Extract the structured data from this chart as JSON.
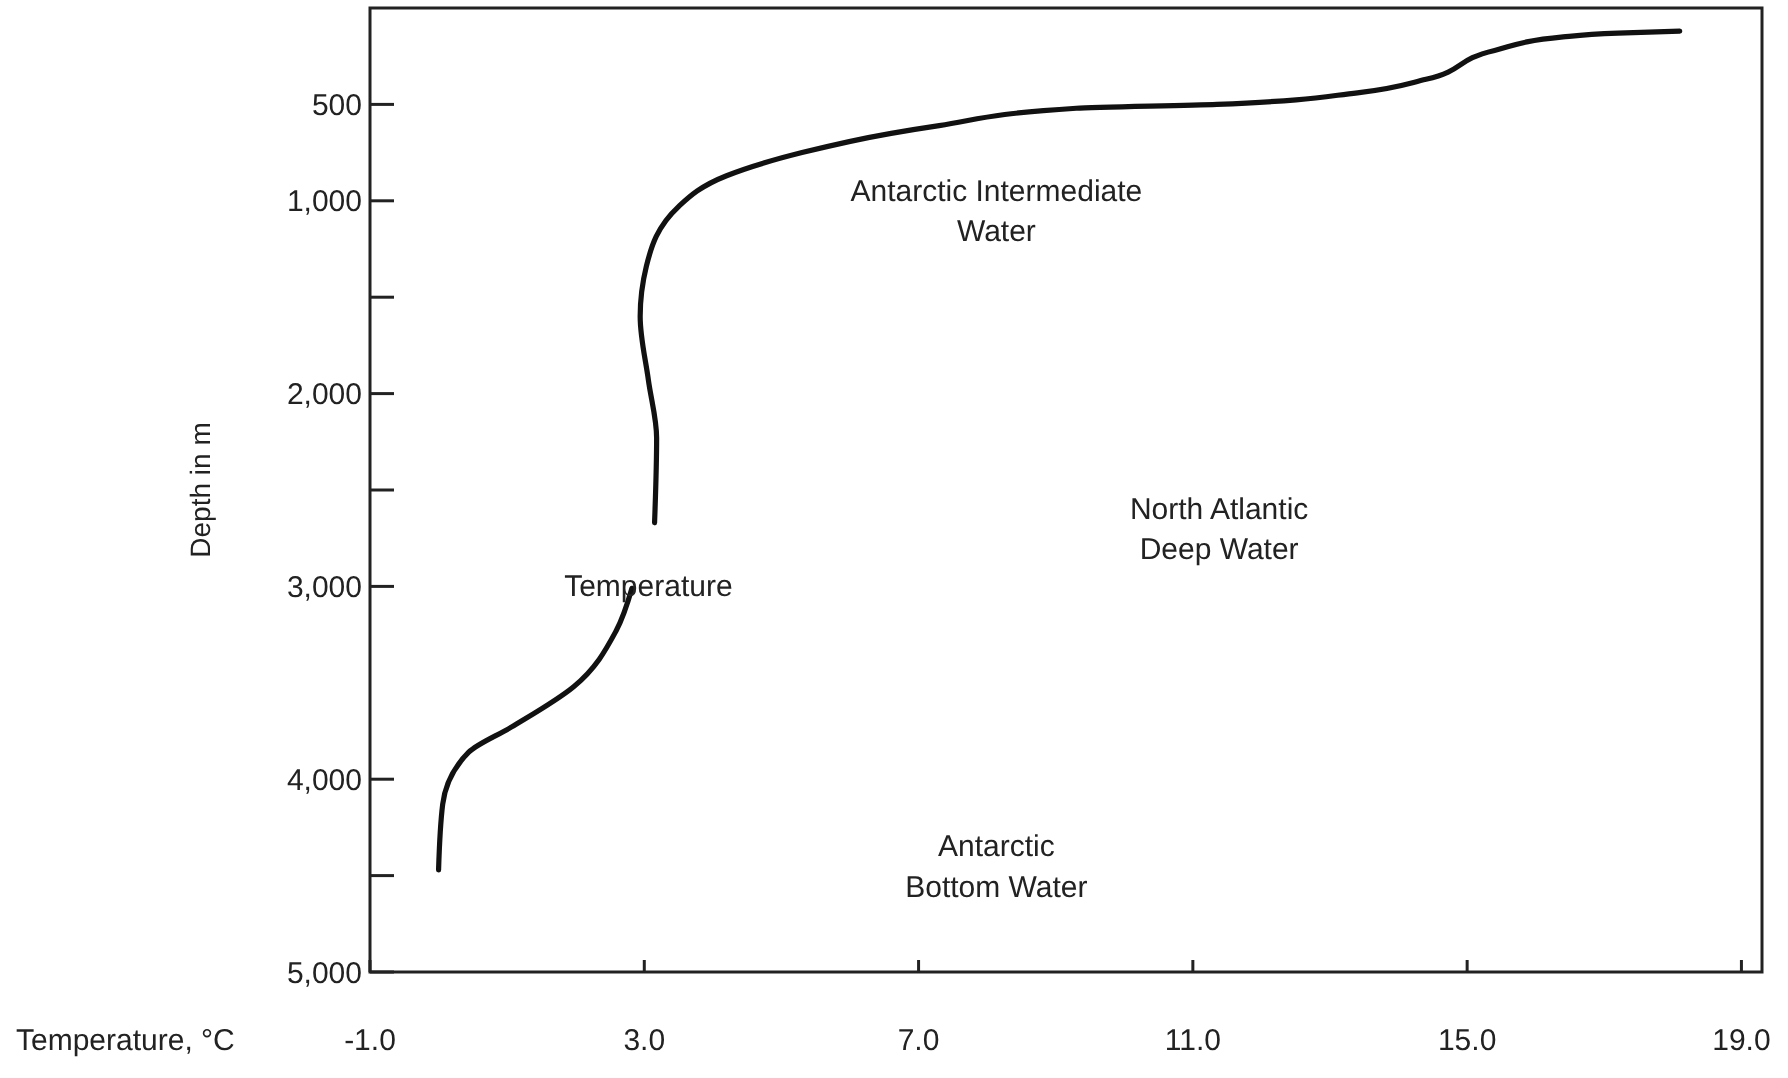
{
  "chart_data": {
    "type": "line",
    "xlabel": "Temperature, °C",
    "ylabel": "Depth in m",
    "xlim": [
      -1,
      19.3
    ],
    "ylim": [
      5000,
      0
    ],
    "xticks": [
      {
        "value": -1,
        "label": "-1.0"
      },
      {
        "value": 3,
        "label": "3.0"
      },
      {
        "value": 7,
        "label": "7.0"
      },
      {
        "value": 11,
        "label": "11.0"
      },
      {
        "value": 15,
        "label": "15.0"
      },
      {
        "value": 19,
        "label": "19.0"
      }
    ],
    "yticks": [
      500,
      {
        "value": 1000,
        "label": "1,000"
      },
      {
        "value": 1500,
        "label": null
      },
      {
        "value": 2000,
        "label": "2,000"
      },
      {
        "value": 2500,
        "label": null
      },
      {
        "value": 3000,
        "label": "3,000"
      },
      {
        "value": 4000,
        "label": "4,000"
      },
      {
        "value": 4500,
        "label": null
      },
      {
        "value": 5000,
        "label": "5,000"
      }
    ],
    "series": [
      {
        "color": "#111111",
        "x": [
          0.0,
          0.06,
          0.44,
          1.06,
          1.97,
          2.59,
          2.82,
          3.0,
          3.15,
          3.18,
          3.06,
          2.94,
          3.03,
          3.5,
          4.2,
          5.3,
          6.6,
          7.3,
          9.3,
          11.35,
          13.4,
          14.4,
          15.4,
          16.4,
          17.2,
          18.1
        ],
        "values": [
          4470,
          4130,
          3860,
          3730,
          3520,
          3230,
          3010,
          null,
          2670,
          2230,
          1930,
          1600,
          1340,
          1030,
          870,
          750,
          650,
          610,
          520,
          500,
          440,
          370,
          220,
          150,
          130,
          120
        ]
      }
    ],
    "annotations": [
      "Antarctic Intermediate\nWater",
      "North Atlantic\nDeep Water",
      "Temperature",
      "Antarctic\nBottom Water"
    ],
    "grid": false,
    "marker": "none",
    "line_style": "solid"
  }
}
